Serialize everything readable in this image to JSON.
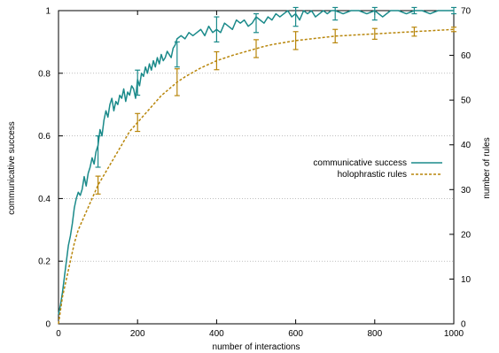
{
  "chart_data": {
    "type": "line",
    "title": "",
    "xlabel": "number of interactions",
    "ylabel": "communicative success",
    "y2label": "number of rules",
    "xlim": [
      0,
      1000
    ],
    "ylim": [
      0,
      1
    ],
    "y2lim": [
      0,
      70
    ],
    "x_ticks": [
      0,
      200,
      400,
      600,
      800,
      1000
    ],
    "x_tick_labels": [
      "0",
      "200",
      "400",
      "600",
      "800",
      "1000"
    ],
    "y_ticks": [
      0,
      0.2,
      0.4,
      0.6,
      0.8,
      1
    ],
    "y_tick_labels": [
      "0",
      "0.2",
      "0.4",
      "0.6",
      "0.8",
      "1"
    ],
    "y2_ticks": [
      0,
      10,
      20,
      30,
      40,
      50,
      60,
      70
    ],
    "y2_tick_labels": [
      "0",
      "10",
      "20",
      "30",
      "40",
      "50",
      "60",
      "70"
    ],
    "grid": "horizontal dotted",
    "legend_position": "right-center",
    "series": [
      {
        "name": "communicative success",
        "axis": "left",
        "color": "#1a8a8a",
        "style": "solid",
        "x": [
          0,
          5,
          10,
          15,
          20,
          25,
          30,
          35,
          40,
          45,
          50,
          55,
          60,
          65,
          70,
          75,
          80,
          85,
          90,
          95,
          100,
          105,
          110,
          115,
          120,
          125,
          130,
          135,
          140,
          145,
          150,
          155,
          160,
          165,
          170,
          175,
          180,
          185,
          190,
          195,
          200,
          205,
          210,
          215,
          220,
          225,
          230,
          235,
          240,
          245,
          250,
          255,
          260,
          265,
          270,
          275,
          280,
          285,
          290,
          295,
          300,
          310,
          320,
          330,
          340,
          350,
          360,
          370,
          380,
          390,
          400,
          410,
          420,
          430,
          440,
          450,
          460,
          470,
          480,
          490,
          500,
          510,
          520,
          530,
          540,
          550,
          560,
          570,
          580,
          590,
          600,
          610,
          620,
          630,
          640,
          650,
          660,
          670,
          680,
          690,
          700,
          720,
          740,
          760,
          780,
          800,
          820,
          840,
          860,
          880,
          900,
          920,
          940,
          960,
          980,
          1000
        ],
        "values": [
          0.03,
          0.06,
          0.1,
          0.15,
          0.2,
          0.25,
          0.28,
          0.32,
          0.37,
          0.4,
          0.42,
          0.41,
          0.43,
          0.47,
          0.44,
          0.48,
          0.5,
          0.53,
          0.51,
          0.55,
          0.57,
          0.62,
          0.6,
          0.65,
          0.68,
          0.66,
          0.7,
          0.72,
          0.68,
          0.71,
          0.7,
          0.73,
          0.72,
          0.75,
          0.71,
          0.74,
          0.73,
          0.76,
          0.75,
          0.72,
          0.78,
          0.76,
          0.8,
          0.79,
          0.82,
          0.8,
          0.83,
          0.81,
          0.84,
          0.82,
          0.85,
          0.83,
          0.86,
          0.84,
          0.85,
          0.87,
          0.86,
          0.85,
          0.88,
          0.89,
          0.91,
          0.92,
          0.91,
          0.93,
          0.92,
          0.93,
          0.94,
          0.92,
          0.95,
          0.93,
          0.94,
          0.93,
          0.96,
          0.95,
          0.94,
          0.97,
          0.96,
          0.97,
          0.95,
          0.96,
          0.98,
          0.97,
          0.96,
          0.98,
          0.97,
          0.99,
          0.98,
          0.99,
          1.0,
          0.98,
          0.99,
          0.97,
          1.0,
          0.99,
          1.0,
          0.98,
          0.99,
          1.0,
          0.99,
          1.0,
          1.0,
          0.99,
          1.0,
          1.0,
          0.99,
          1.0,
          0.98,
          1.0,
          1.0,
          0.99,
          1.0,
          1.0,
          0.99,
          1.0,
          1.0,
          1.0
        ],
        "error_x": [
          100,
          200,
          300,
          400,
          500,
          600,
          700,
          800,
          900,
          1000
        ],
        "error_y": [
          0.55,
          0.77,
          0.86,
          0.94,
          0.96,
          0.98,
          0.99,
          0.99,
          1.0,
          1.0
        ],
        "error_plus": [
          0.05,
          0.04,
          0.04,
          0.04,
          0.03,
          0.03,
          0.02,
          0.02,
          0.01,
          0.01
        ],
        "error_minus": [
          0.05,
          0.04,
          0.04,
          0.04,
          0.03,
          0.03,
          0.02,
          0.02,
          0.01,
          0.01
        ]
      },
      {
        "name": "holophrastic rules",
        "axis": "right",
        "color": "#b8860b",
        "style": "dashed",
        "x": [
          0,
          10,
          20,
          30,
          40,
          50,
          60,
          70,
          80,
          90,
          100,
          120,
          140,
          160,
          180,
          200,
          220,
          240,
          260,
          280,
          300,
          320,
          340,
          360,
          380,
          400,
          420,
          440,
          460,
          480,
          500,
          520,
          540,
          560,
          580,
          600,
          620,
          640,
          660,
          680,
          700,
          720,
          740,
          760,
          780,
          800,
          820,
          840,
          860,
          880,
          900,
          920,
          940,
          960,
          980,
          1000
        ],
        "values": [
          0,
          6,
          10,
          14,
          18,
          21,
          23,
          25,
          27,
          29,
          31,
          34,
          37,
          40,
          43,
          45,
          47,
          49,
          51,
          52.5,
          54,
          55.2,
          56.2,
          57.2,
          58,
          58.8,
          59.4,
          60,
          60.5,
          61,
          61.5,
          62,
          62.4,
          62.7,
          63,
          63.3,
          63.5,
          63.7,
          63.9,
          64.1,
          64.3,
          64.4,
          64.5,
          64.6,
          64.7,
          64.8,
          64.9,
          65,
          65.1,
          65.2,
          65.3,
          65.4,
          65.5,
          65.6,
          65.7,
          65.8
        ],
        "error_x": [
          100,
          200,
          300,
          400,
          500,
          600,
          700,
          800,
          900,
          1000
        ],
        "error_y": [
          31,
          45,
          54,
          58.8,
          61.5,
          63.3,
          64.3,
          64.8,
          65.3,
          65.8
        ],
        "error_plus": [
          2,
          2,
          3,
          2,
          2,
          2,
          1.5,
          1.2,
          1,
          0.5
        ],
        "error_minus": [
          2,
          2,
          3,
          2,
          2,
          2,
          1.5,
          1.2,
          1,
          0.5
        ]
      }
    ]
  }
}
